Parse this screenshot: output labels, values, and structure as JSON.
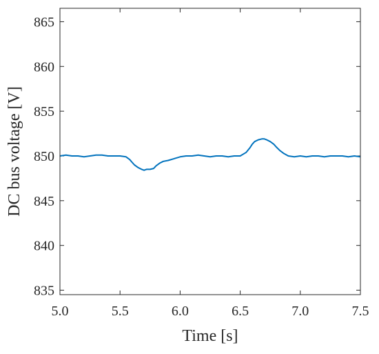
{
  "chart_data": {
    "type": "line",
    "title": "",
    "xlabel": "Time [s]",
    "ylabel": "DC bus voltage [V]",
    "xlim": [
      5.0,
      7.5
    ],
    "ylim": [
      834.5,
      866.5
    ],
    "x_ticks": [
      5.0,
      5.5,
      6.0,
      6.5,
      7.0,
      7.5
    ],
    "x_tick_labels": [
      "5.0",
      "5.5",
      "6.0",
      "6.5",
      "7.0",
      "7.5"
    ],
    "y_ticks": [
      835,
      840,
      845,
      850,
      855,
      860,
      865
    ],
    "y_tick_labels": [
      "835",
      "840",
      "845",
      "850",
      "855",
      "860",
      "865"
    ],
    "grid": false,
    "line_color": "#0072BD",
    "series": [
      {
        "x": [
          5.0,
          5.05,
          5.1,
          5.15,
          5.2,
          5.25,
          5.3,
          5.35,
          5.4,
          5.45,
          5.5,
          5.55,
          5.58,
          5.6,
          5.62,
          5.65,
          5.68,
          5.7,
          5.72,
          5.75,
          5.78,
          5.8,
          5.83,
          5.86,
          5.9,
          5.95,
          6.0,
          6.05,
          6.1,
          6.15,
          6.2,
          6.25,
          6.3,
          6.35,
          6.4,
          6.45,
          6.5,
          6.55,
          6.58,
          6.6,
          6.62,
          6.65,
          6.68,
          6.7,
          6.72,
          6.75,
          6.78,
          6.8,
          6.83,
          6.86,
          6.9,
          6.95,
          7.0,
          7.05,
          7.1,
          7.15,
          7.2,
          7.25,
          7.3,
          7.35,
          7.4,
          7.45,
          7.5
        ],
        "y": [
          850.0,
          850.1,
          850.0,
          850.0,
          849.9,
          850.0,
          850.1,
          850.1,
          850.0,
          850.0,
          850.0,
          849.9,
          849.6,
          849.3,
          849.0,
          848.7,
          848.5,
          848.4,
          848.5,
          848.5,
          848.6,
          848.9,
          849.2,
          849.4,
          849.5,
          849.7,
          849.9,
          850.0,
          850.0,
          850.1,
          850.0,
          849.9,
          850.0,
          850.0,
          849.9,
          850.0,
          850.0,
          850.4,
          850.9,
          851.3,
          851.6,
          851.8,
          851.9,
          851.9,
          851.8,
          851.6,
          851.3,
          851.0,
          850.6,
          850.3,
          850.0,
          849.9,
          850.0,
          849.9,
          850.0,
          850.0,
          849.9,
          850.0,
          850.0,
          850.0,
          849.9,
          850.0,
          849.9
        ]
      }
    ]
  }
}
